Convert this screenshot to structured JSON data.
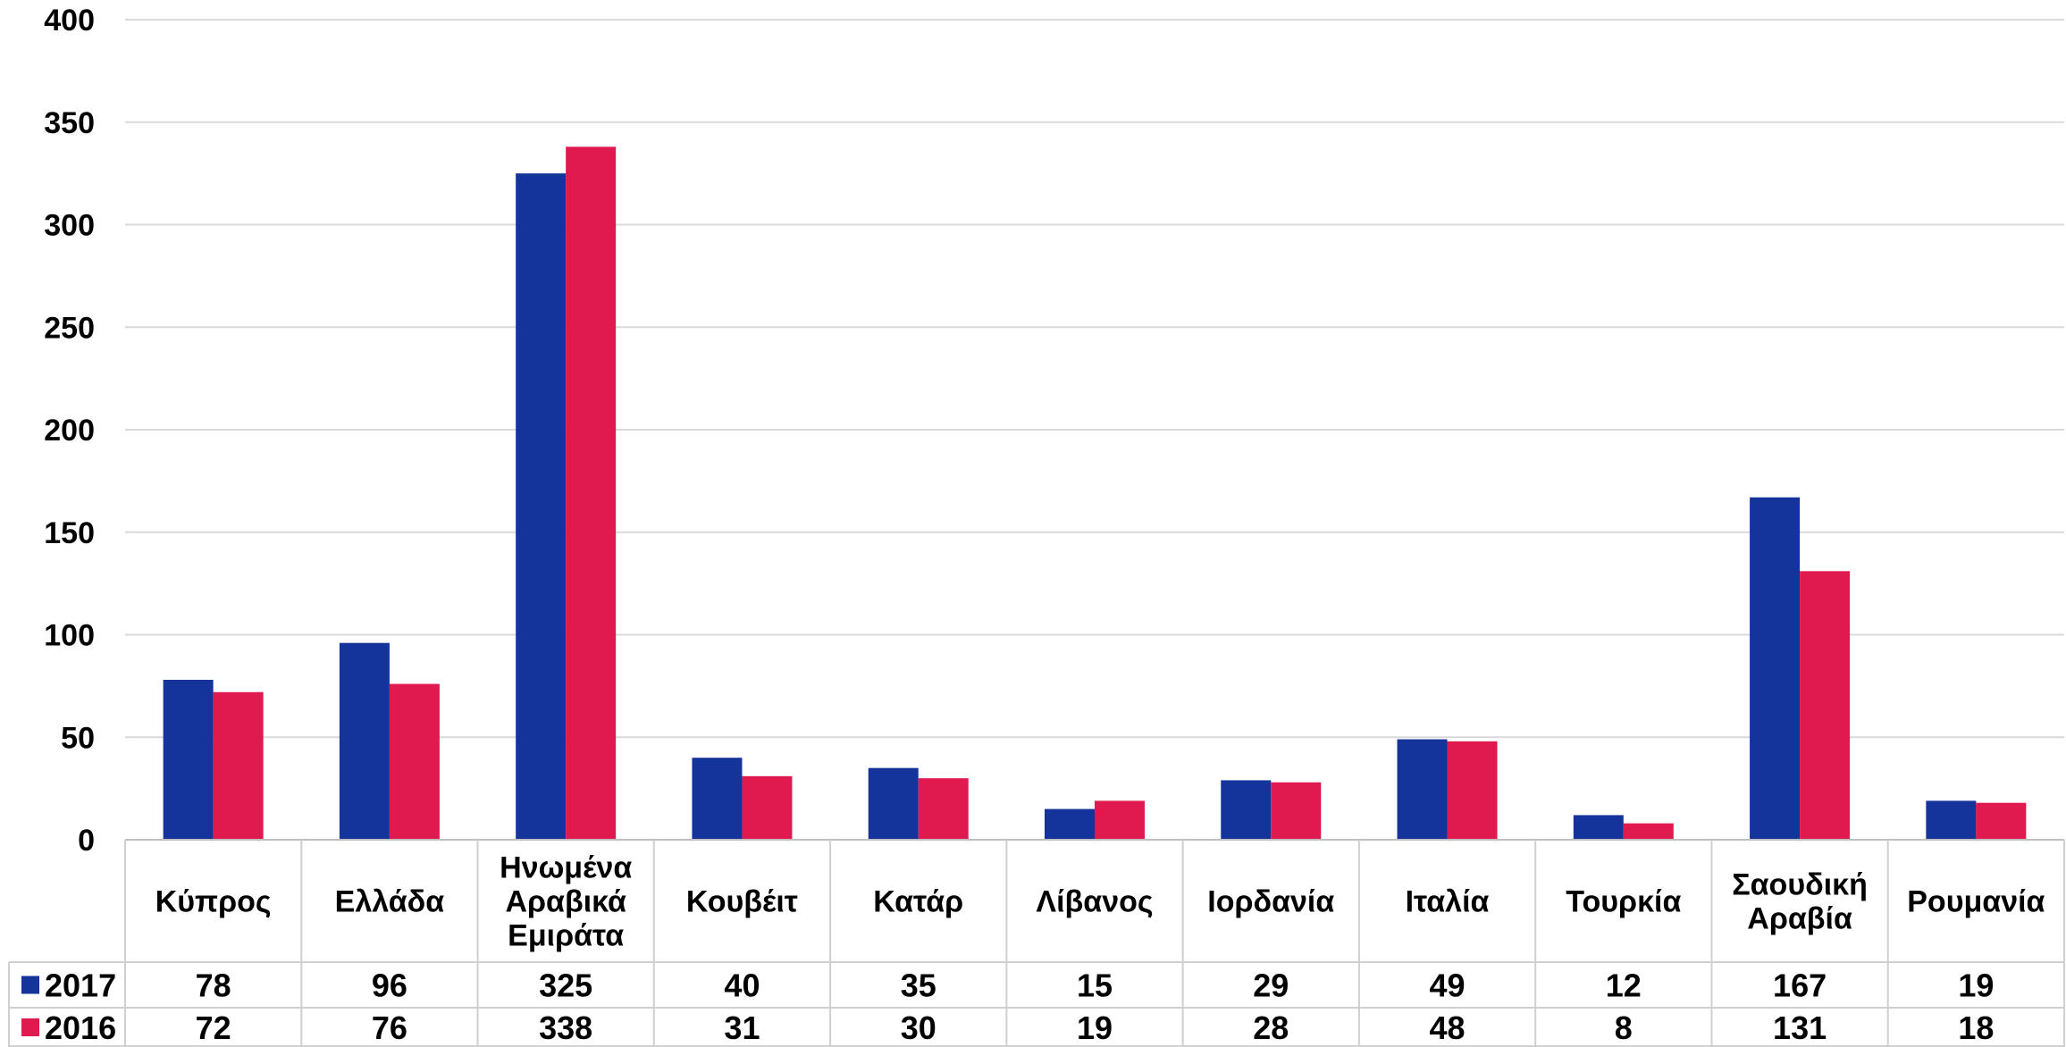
{
  "chart_data": {
    "type": "bar",
    "title": "",
    "xlabel": "",
    "ylabel": "",
    "ylim": [
      0,
      400
    ],
    "yticks": [
      0,
      50,
      100,
      150,
      200,
      250,
      300,
      350,
      400
    ],
    "grid": true,
    "legend": "data table below chart",
    "categories": [
      [
        "Κύπρος"
      ],
      [
        "Ελλάδα"
      ],
      [
        "Ηνωμένα",
        "Αραβικά",
        "Εμιράτα"
      ],
      [
        "Κουβέιτ"
      ],
      [
        "Κατάρ"
      ],
      [
        "Λίβανος"
      ],
      [
        "Ιορδανία"
      ],
      [
        "Ιταλία"
      ],
      [
        "Τουρκία"
      ],
      [
        "Σαουδική",
        "Αραβία"
      ],
      [
        "Ρουμανία"
      ]
    ],
    "series": [
      {
        "name": "2017",
        "color": "#14339b",
        "values": [
          78,
          96,
          325,
          40,
          35,
          15,
          29,
          49,
          12,
          167,
          19
        ]
      },
      {
        "name": "2016",
        "color": "#e0194f",
        "values": [
          72,
          76,
          338,
          31,
          30,
          19,
          28,
          48,
          8,
          131,
          18
        ]
      }
    ]
  }
}
